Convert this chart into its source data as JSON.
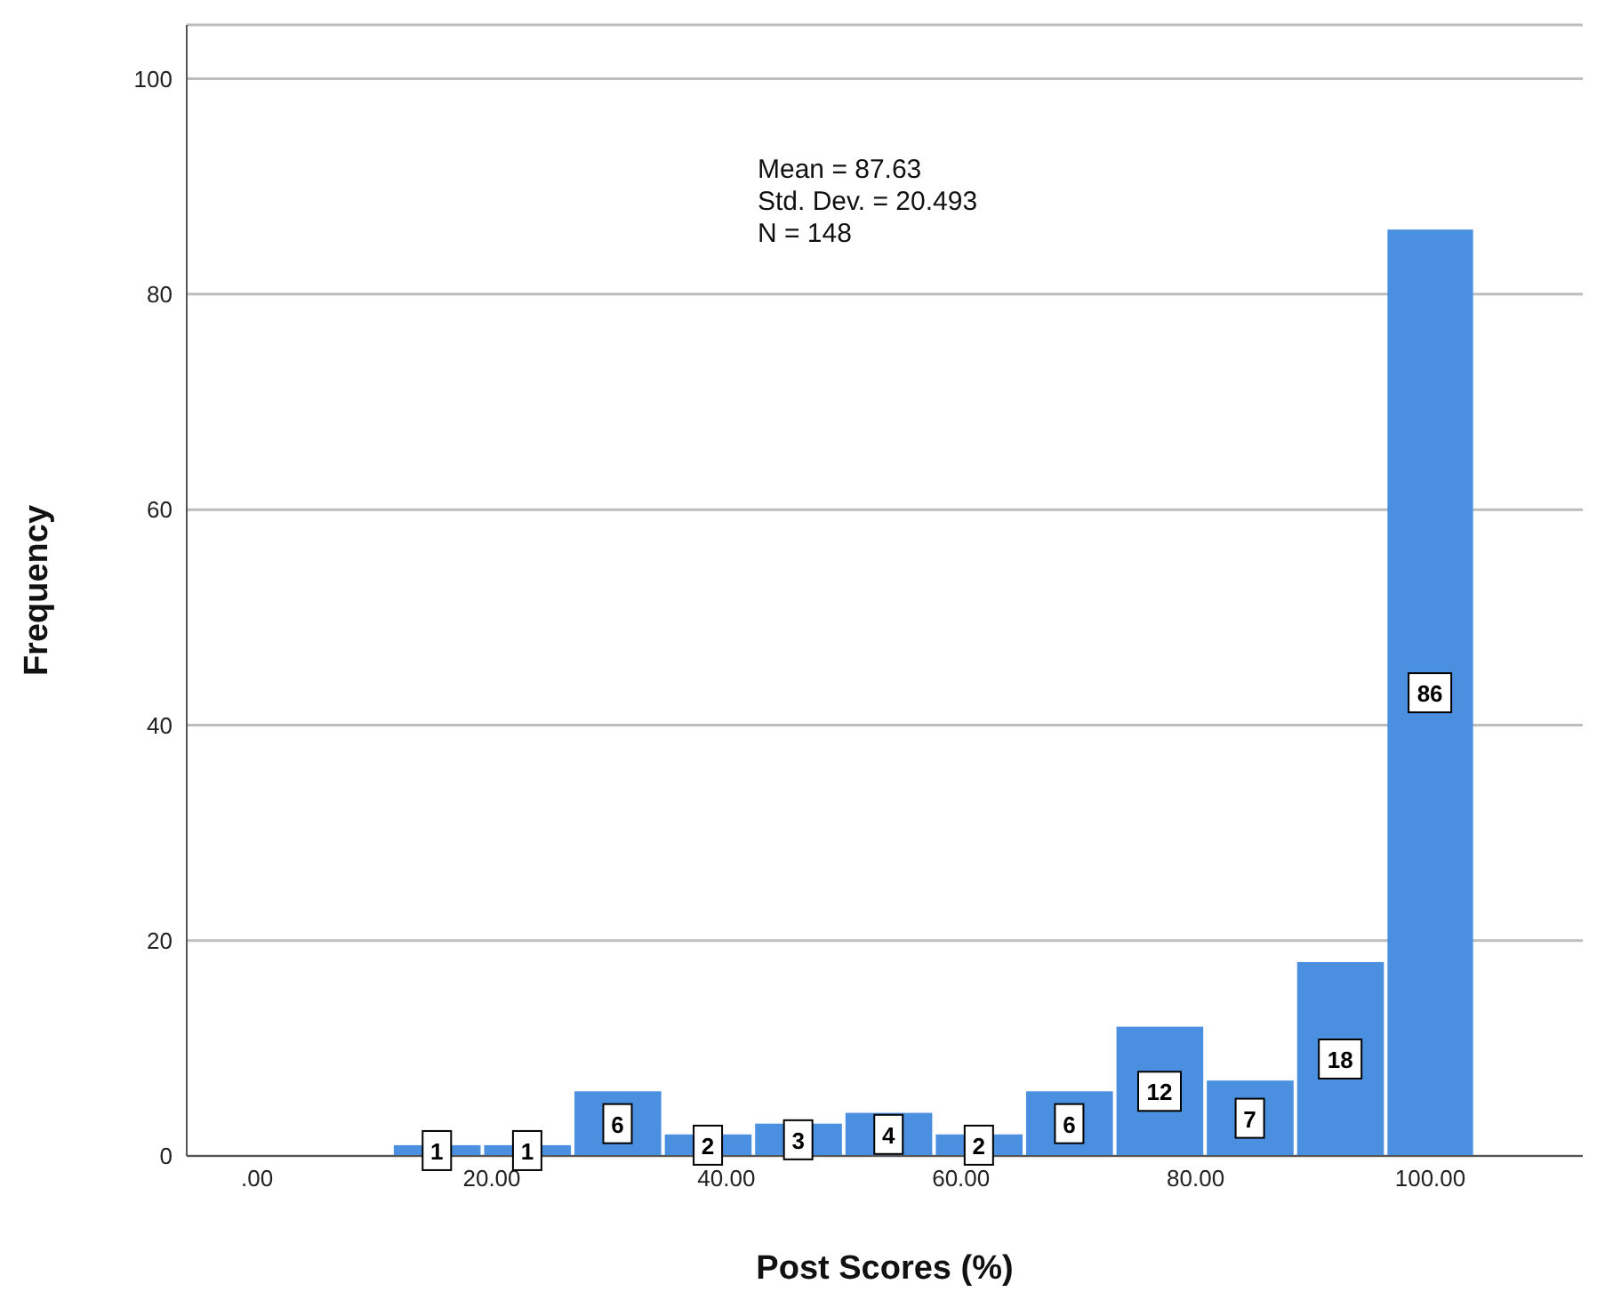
{
  "chart_data": {
    "type": "histogram",
    "xlabel": "Post Scores (%)",
    "ylabel": "Frequency",
    "bins": [
      11.5,
      19.2,
      26.9,
      34.6,
      42.3,
      50,
      57.7,
      65.4,
      73.1,
      80.8,
      88.5,
      96.2,
      103.8
    ],
    "values": [
      1,
      1,
      6,
      2,
      3,
      4,
      2,
      6,
      12,
      7,
      18,
      86
    ],
    "color": "#4a8fe0",
    "xlim": [
      -6,
      113
    ],
    "xticks": [
      {
        "value": 0,
        "label": ".00"
      },
      {
        "value": 20,
        "label": "20.00"
      },
      {
        "value": 40,
        "label": "40.00"
      },
      {
        "value": 60,
        "label": "60.00"
      },
      {
        "value": 80,
        "label": "80.00"
      },
      {
        "value": 100,
        "label": "100.00"
      }
    ],
    "ylim": [
      0,
      105
    ],
    "yticks": [
      0,
      20,
      40,
      60,
      80,
      100
    ],
    "grid": "y",
    "data_labels": true,
    "annotations": [
      "Mean = 87.63",
      "Std. Dev. = 20.493",
      "N = 148"
    ]
  }
}
